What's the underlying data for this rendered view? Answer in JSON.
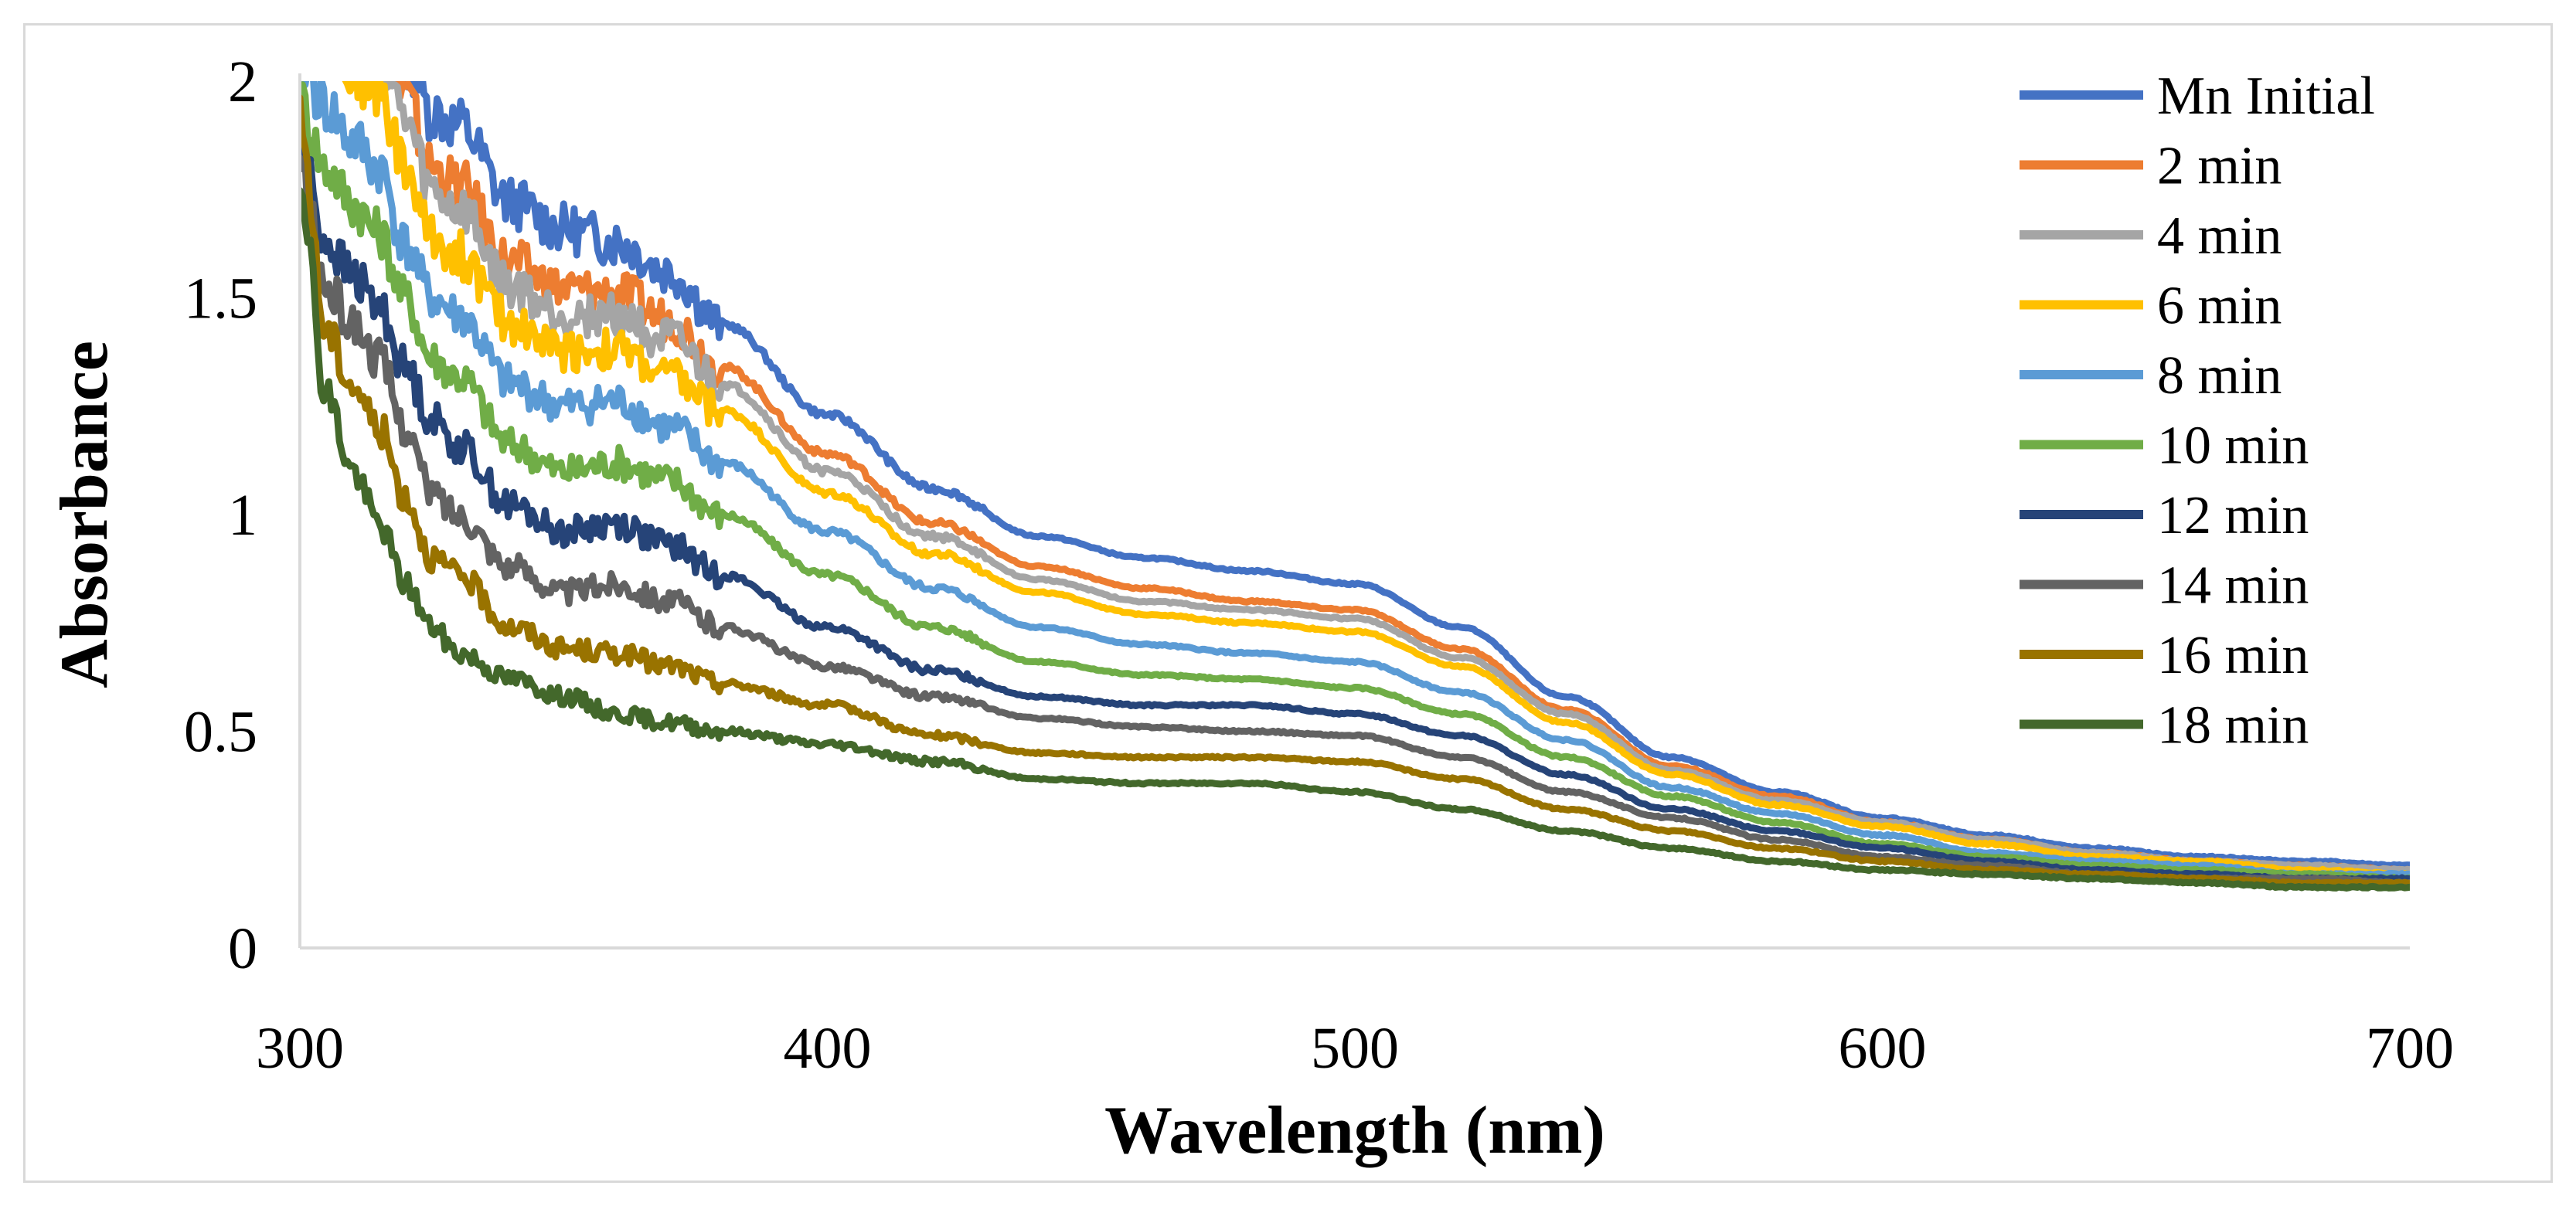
{
  "chart_data": {
    "type": "line",
    "title": "",
    "xlabel": "Wavelength (nm)",
    "ylabel": "Absorbance",
    "xlim": [
      300,
      700
    ],
    "ylim": [
      0,
      2
    ],
    "x_ticks": [
      "300",
      "400",
      "500",
      "600",
      "700"
    ],
    "y_ticks": [
      "0",
      "0.5",
      "1",
      "1.5",
      "2"
    ],
    "legend_position": "top-right",
    "grid": false,
    "x": [
      300,
      305,
      310,
      315,
      320,
      325,
      330,
      340,
      350,
      360,
      370,
      380,
      400,
      420,
      440,
      460,
      480,
      500,
      520,
      540,
      560,
      580,
      600,
      620,
      640,
      660,
      680,
      700
    ],
    "series": [
      {
        "name": "Mn Initial",
        "color": "#4472C4",
        "values": [
          2.1,
          2.1,
          2.1,
          2.1,
          2.06,
          1.93,
          1.9,
          1.72,
          1.66,
          1.63,
          1.56,
          1.44,
          1.23,
          1.06,
          0.95,
          0.9,
          0.87,
          0.84,
          0.74,
          0.58,
          0.44,
          0.36,
          0.3,
          0.26,
          0.23,
          0.21,
          0.2,
          0.19
        ]
      },
      {
        "name": "2 min",
        "color": "#ED7D31",
        "values": [
          2.1,
          2.1,
          2.1,
          2.1,
          1.96,
          1.8,
          1.76,
          1.58,
          1.52,
          1.51,
          1.45,
          1.34,
          1.14,
          0.98,
          0.88,
          0.83,
          0.8,
          0.78,
          0.69,
          0.55,
          0.42,
          0.35,
          0.29,
          0.25,
          0.22,
          0.2,
          0.19,
          0.18
        ]
      },
      {
        "name": "4 min",
        "color": "#A5A5A5",
        "values": [
          2.1,
          2.1,
          2.1,
          2.08,
          1.9,
          1.74,
          1.7,
          1.52,
          1.46,
          1.46,
          1.4,
          1.3,
          1.1,
          0.95,
          0.85,
          0.8,
          0.78,
          0.76,
          0.67,
          0.54,
          0.41,
          0.34,
          0.29,
          0.25,
          0.22,
          0.2,
          0.19,
          0.18
        ]
      },
      {
        "name": "6 min",
        "color": "#FFC000",
        "values": [
          2.1,
          2.1,
          2.02,
          1.98,
          1.8,
          1.64,
          1.6,
          1.44,
          1.38,
          1.38,
          1.32,
          1.24,
          1.05,
          0.91,
          0.82,
          0.77,
          0.75,
          0.73,
          0.65,
          0.52,
          0.4,
          0.33,
          0.28,
          0.24,
          0.21,
          0.2,
          0.18,
          0.17
        ]
      },
      {
        "name": "8 min",
        "color": "#5B9BD5",
        "values": [
          2.05,
          1.94,
          1.86,
          1.8,
          1.62,
          1.5,
          1.46,
          1.3,
          1.25,
          1.26,
          1.2,
          1.12,
          0.96,
          0.83,
          0.74,
          0.7,
          0.68,
          0.66,
          0.59,
          0.48,
          0.37,
          0.31,
          0.26,
          0.22,
          0.2,
          0.19,
          0.17,
          0.17
        ]
      },
      {
        "name": "10 min",
        "color": "#70AD47",
        "values": [
          1.95,
          1.8,
          1.72,
          1.65,
          1.5,
          1.36,
          1.32,
          1.16,
          1.1,
          1.12,
          1.08,
          1.0,
          0.86,
          0.74,
          0.66,
          0.63,
          0.62,
          0.6,
          0.54,
          0.44,
          0.35,
          0.29,
          0.24,
          0.21,
          0.19,
          0.18,
          0.17,
          0.16
        ]
      },
      {
        "name": "12 min",
        "color": "#264478",
        "values": [
          1.85,
          1.63,
          1.55,
          1.48,
          1.34,
          1.22,
          1.16,
          1.02,
          0.96,
          0.98,
          0.93,
          0.86,
          0.74,
          0.64,
          0.58,
          0.56,
          0.56,
          0.54,
          0.49,
          0.4,
          0.32,
          0.27,
          0.23,
          0.2,
          0.18,
          0.17,
          0.16,
          0.16
        ]
      },
      {
        "name": "14 min",
        "color": "#636363",
        "values": [
          1.8,
          1.52,
          1.44,
          1.36,
          1.2,
          1.05,
          1.0,
          0.88,
          0.82,
          0.84,
          0.8,
          0.74,
          0.65,
          0.58,
          0.53,
          0.51,
          0.5,
          0.49,
          0.44,
          0.36,
          0.3,
          0.25,
          0.21,
          0.19,
          0.17,
          0.16,
          0.16,
          0.15
        ]
      },
      {
        "name": "16 min",
        "color": "#997300",
        "values": [
          1.9,
          1.42,
          1.3,
          1.2,
          1.04,
          0.9,
          0.86,
          0.74,
          0.69,
          0.68,
          0.65,
          0.61,
          0.56,
          0.49,
          0.45,
          0.44,
          0.44,
          0.43,
          0.39,
          0.32,
          0.27,
          0.23,
          0.2,
          0.18,
          0.17,
          0.16,
          0.15,
          0.15
        ]
      },
      {
        "name": "18 min",
        "color": "#43682B",
        "values": [
          1.78,
          1.28,
          1.1,
          0.98,
          0.84,
          0.74,
          0.68,
          0.62,
          0.58,
          0.54,
          0.52,
          0.5,
          0.47,
          0.43,
          0.39,
          0.38,
          0.38,
          0.36,
          0.32,
          0.27,
          0.23,
          0.2,
          0.18,
          0.17,
          0.16,
          0.15,
          0.14,
          0.14
        ]
      }
    ]
  },
  "colors": {
    "axis": "#d9d9d9",
    "frame": "#d9d9d9",
    "text": "#000000"
  }
}
